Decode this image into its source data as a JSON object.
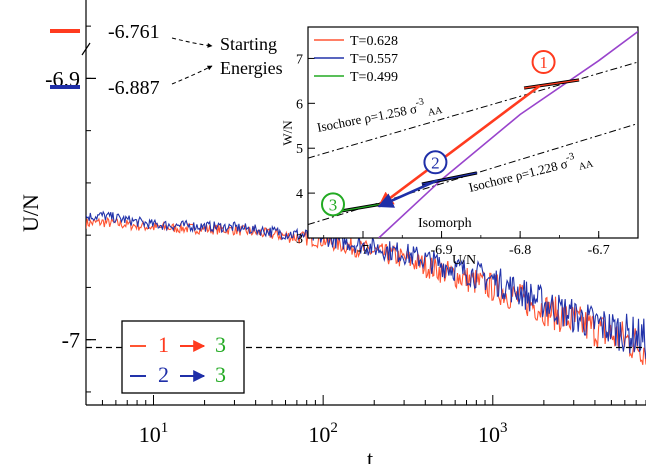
{
  "chart_data": [
    {
      "type": "line",
      "xlabel": "t",
      "ylabel": "U/N",
      "x_scale": "log",
      "xlim": [
        4,
        8000
      ],
      "ylim": [
        -7.025,
        -6.87
      ],
      "x_ticks": [
        {
          "value": 10,
          "base": "10",
          "exp": "1"
        },
        {
          "value": 100,
          "base": "10",
          "exp": "2"
        },
        {
          "value": 1000,
          "base": "10",
          "exp": "3"
        }
      ],
      "y_ticks": [
        {
          "value": -6.9,
          "label": "-6.9"
        },
        {
          "value": -7.0,
          "label": "-7"
        }
      ],
      "reference_line": {
        "y": -7.003,
        "style": "dashed",
        "color": "#000000"
      },
      "starting_energies": [
        {
          "value": -6.761,
          "label": "-6.761",
          "color": "#ff3b1f"
        },
        {
          "value": -6.887,
          "label": "-6.887",
          "color": "#1f2fa8"
        }
      ],
      "starting_energies_note": [
        "Starting",
        "Energies"
      ],
      "series": [
        {
          "name": "1 → 3",
          "color": "#ff5533",
          "x": [
            4,
            5,
            10,
            30,
            100,
            300,
            1000,
            3000,
            8000
          ],
          "y": [
            -6.9555,
            -6.955,
            -6.957,
            -6.958,
            -6.962,
            -6.969,
            -6.98,
            -6.993,
            -7.003
          ]
        },
        {
          "name": "2 → 3",
          "color": "#2233aa",
          "x": [
            4,
            5,
            10,
            30,
            100,
            300,
            1000,
            3000,
            8000
          ],
          "y": [
            -6.953,
            -6.9525,
            -6.956,
            -6.957,
            -6.961,
            -6.967,
            -6.977,
            -6.991,
            -7.0
          ]
        }
      ],
      "legend": {
        "position": "bottom-left",
        "entries": [
          {
            "from": "1",
            "arrow": "→",
            "to": "3",
            "from_color": "#ff3b1f",
            "arrow_color": "#ff3b1f",
            "to_color": "#22aa22"
          },
          {
            "from": "2",
            "arrow": "→",
            "to": "3",
            "from_color": "#1f2fa8",
            "arrow_color": "#1f2fa8",
            "to_color": "#22aa22"
          }
        ]
      }
    },
    {
      "type": "line",
      "xlabel": "U/N",
      "ylabel": "W/N",
      "xlim": [
        -7.07,
        -6.65
      ],
      "ylim": [
        3.0,
        7.7
      ],
      "x_ticks": [
        {
          "value": -7.0,
          "label": "-7"
        },
        {
          "value": -6.9,
          "label": "-6.9"
        },
        {
          "value": -6.8,
          "label": "-6.8"
        },
        {
          "value": -6.7,
          "label": "-6.7"
        }
      ],
      "y_ticks": [
        {
          "value": 3,
          "label": "3"
        },
        {
          "value": 4,
          "label": "4"
        },
        {
          "value": 5,
          "label": "5"
        },
        {
          "value": 6,
          "label": "6"
        },
        {
          "value": 7,
          "label": "7"
        }
      ],
      "legend": [
        {
          "label": "T=0.628",
          "color": "#ff5533"
        },
        {
          "label": "T=0.557",
          "color": "#2233aa"
        },
        {
          "label": "T=0.499",
          "color": "#22aa22"
        }
      ],
      "isochores": [
        {
          "label_main": "Isochore ρ=1.258 σ",
          "label_sup": "-3",
          "label_sub": "AA",
          "x": [
            -7.07,
            -6.65
          ],
          "y": [
            4.78,
            6.92
          ],
          "style": "dash-dot"
        },
        {
          "label_main": "Isochore ρ=1.228 σ",
          "label_sup": "-3",
          "label_sub": "AA",
          "x": [
            -7.07,
            -6.65
          ],
          "y": [
            3.3,
            5.55
          ],
          "style": "dash-dot"
        }
      ],
      "isomorph": {
        "label": "Isomorph",
        "color": "#9944cc",
        "x": [
          -6.98,
          -6.9,
          -6.8,
          -6.7,
          -6.65
        ],
        "y": [
          3.0,
          4.3,
          5.75,
          6.95,
          7.6
        ]
      },
      "state_points": [
        {
          "label": "1",
          "color": "#ff3b1f",
          "x": -6.76,
          "y": 6.43,
          "segment": [
            [
              -6.795,
              6.34
            ],
            [
              -6.725,
              6.52
            ]
          ]
        },
        {
          "label": "2",
          "color": "#1f2fa8",
          "x": -6.89,
          "y": 4.33,
          "segment": [
            [
              -6.925,
              4.2
            ],
            [
              -6.855,
              4.45
            ]
          ]
        },
        {
          "label": "3",
          "color": "#22aa22",
          "x": -7.0,
          "y": 3.75,
          "segment": [
            [
              -7.035,
              3.58
            ],
            [
              -6.975,
              3.76
            ]
          ]
        }
      ],
      "transitions": [
        {
          "from": "1",
          "to": "3",
          "color": "#ff3b1f"
        },
        {
          "from": "2",
          "to": "3",
          "color": "#1f2fa8"
        }
      ]
    }
  ]
}
